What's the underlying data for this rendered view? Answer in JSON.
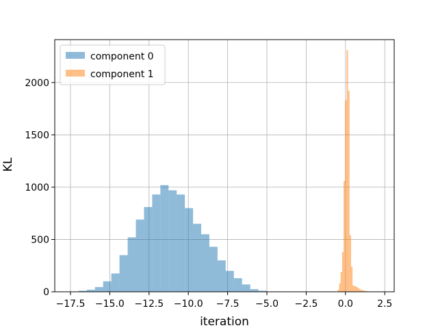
{
  "chart_data": {
    "type": "histogram",
    "title": "",
    "xlabel": "iteration",
    "ylabel": "KL",
    "xlim": [
      -18.5,
      3.1
    ],
    "ylim": [
      0,
      2410
    ],
    "xticks": [
      -17.5,
      -15.0,
      -12.5,
      -10.0,
      -7.5,
      -5.0,
      -2.5,
      0.0,
      2.5
    ],
    "xtick_labels": [
      "−17.5",
      "−15.0",
      "−12.5",
      "−10.0",
      "−7.5",
      "−5.0",
      "−2.5",
      "0.0",
      "2.5"
    ],
    "yticks": [
      0,
      500,
      1000,
      1500,
      2000
    ],
    "ytick_labels": [
      "0",
      "500",
      "1000",
      "1500",
      "2000"
    ],
    "grid": true,
    "legend_position": "upper-left",
    "alpha": 0.5,
    "series": [
      {
        "name": "component 0",
        "color": "#1f77b4",
        "bin_edges": [
          -17.5,
          -16.98,
          -16.46,
          -15.94,
          -15.42,
          -14.9,
          -14.38,
          -13.86,
          -13.34,
          -12.82,
          -12.3,
          -11.78,
          -11.26,
          -10.74,
          -10.22,
          -9.7,
          -9.18,
          -8.66,
          -8.14,
          -7.62,
          -7.1,
          -6.58,
          -6.06,
          -5.54,
          -5.02
        ],
        "counts": [
          3,
          10,
          20,
          45,
          100,
          175,
          350,
          520,
          690,
          810,
          930,
          1020,
          970,
          930,
          800,
          650,
          550,
          430,
          300,
          200,
          130,
          70,
          25,
          10
        ]
      },
      {
        "name": "component 1",
        "color": "#ff7f0e",
        "bin_edges": [
          -0.5,
          -0.405,
          -0.31,
          -0.215,
          -0.12,
          -0.025,
          0.07,
          0.165,
          0.26,
          0.355,
          0.45,
          0.545,
          0.64,
          0.735,
          0.83,
          0.925,
          1.02,
          1.115,
          1.21,
          1.305,
          1.4,
          1.495,
          1.59,
          1.685,
          1.78
        ],
        "counts": [
          20,
          80,
          190,
          380,
          1060,
          1830,
          2310,
          1920,
          540,
          240,
          60,
          55,
          50,
          40,
          30,
          20,
          16,
          12,
          8,
          6,
          4,
          3,
          2,
          1
        ]
      }
    ]
  }
}
